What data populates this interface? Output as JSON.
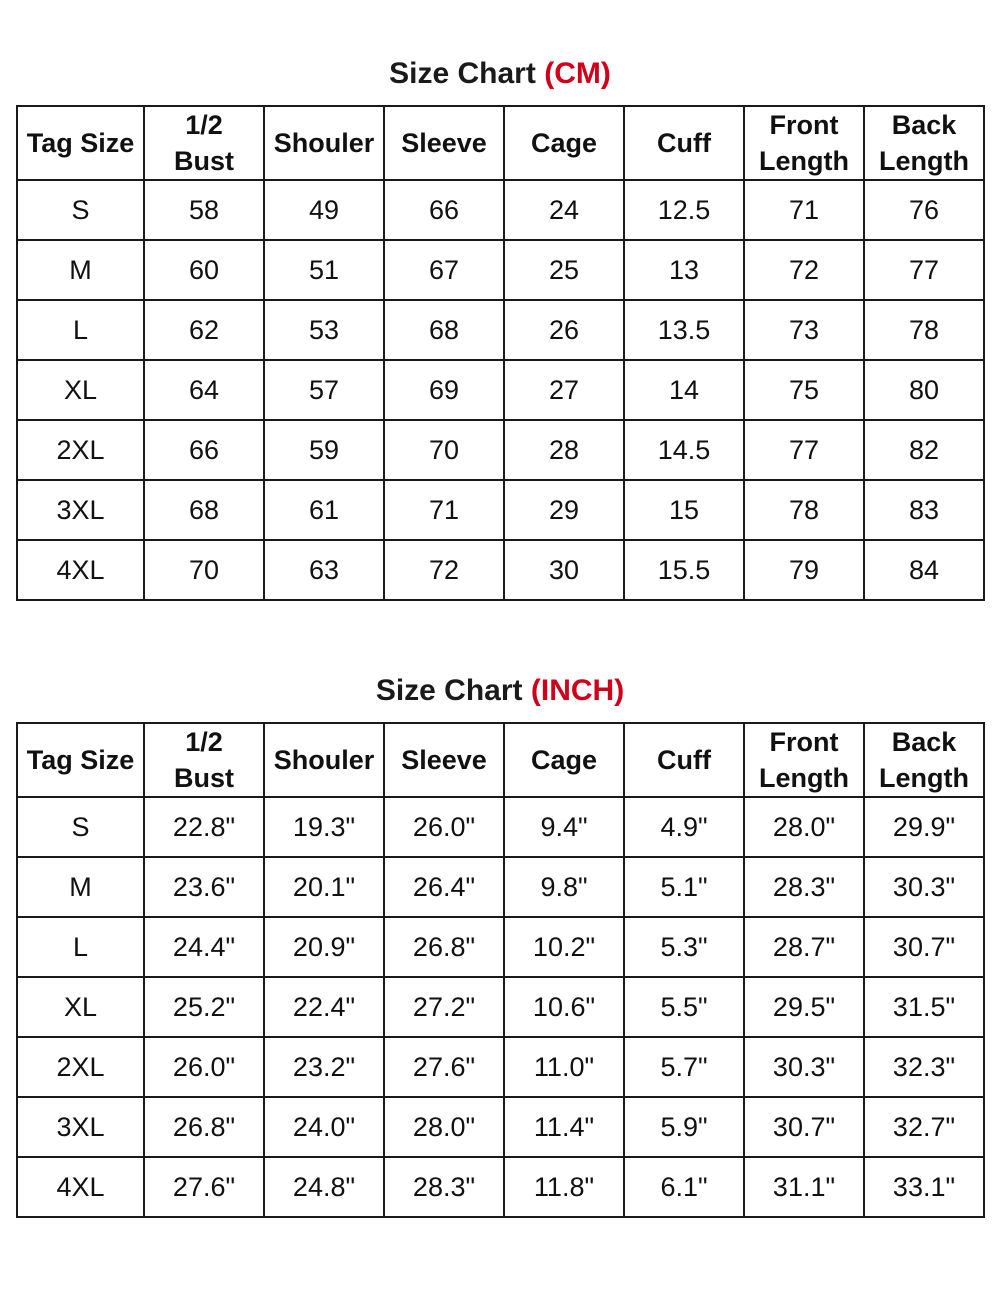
{
  "colors": {
    "unit_accent": "#d0021b",
    "text": "#1a1a1a",
    "border": "#1a1a1a",
    "background": "#ffffff"
  },
  "columns": [
    "Tag Size",
    "1/2 Bust",
    "Shouler",
    "Sleeve",
    "Cage",
    "Cuff",
    "Front Length",
    "Back Length"
  ],
  "header_lines": [
    [
      "Tag Size"
    ],
    [
      "1/2",
      "Bust"
    ],
    [
      "Shouler"
    ],
    [
      "Sleeve"
    ],
    [
      "Cage"
    ],
    [
      "Cuff"
    ],
    [
      "Front",
      "Length"
    ],
    [
      "Back",
      "Length"
    ]
  ],
  "cm": {
    "title": "Size Chart",
    "unit": "(CM)",
    "rows": [
      [
        "S",
        "58",
        "49",
        "66",
        "24",
        "12.5",
        "71",
        "76"
      ],
      [
        "M",
        "60",
        "51",
        "67",
        "25",
        "13",
        "72",
        "77"
      ],
      [
        "L",
        "62",
        "53",
        "68",
        "26",
        "13.5",
        "73",
        "78"
      ],
      [
        "XL",
        "64",
        "57",
        "69",
        "27",
        "14",
        "75",
        "80"
      ],
      [
        "2XL",
        "66",
        "59",
        "70",
        "28",
        "14.5",
        "77",
        "82"
      ],
      [
        "3XL",
        "68",
        "61",
        "71",
        "29",
        "15",
        "78",
        "83"
      ],
      [
        "4XL",
        "70",
        "63",
        "72",
        "30",
        "15.5",
        "79",
        "84"
      ]
    ]
  },
  "inch": {
    "title": "Size Chart",
    "unit": "(INCH)",
    "rows": [
      [
        "S",
        "22.8\"",
        "19.3\"",
        "26.0\"",
        "9.4\"",
        "4.9\"",
        "28.0\"",
        "29.9\""
      ],
      [
        "M",
        "23.6\"",
        "20.1\"",
        "26.4\"",
        "9.8\"",
        "5.1\"",
        "28.3\"",
        "30.3\""
      ],
      [
        "L",
        "24.4\"",
        "20.9\"",
        "26.8\"",
        "10.2\"",
        "5.3\"",
        "28.7\"",
        "30.7\""
      ],
      [
        "XL",
        "25.2\"",
        "22.4\"",
        "27.2\"",
        "10.6\"",
        "5.5\"",
        "29.5\"",
        "31.5\""
      ],
      [
        "2XL",
        "26.0\"",
        "23.2\"",
        "27.6\"",
        "11.0\"",
        "5.7\"",
        "30.3\"",
        "32.3\""
      ],
      [
        "3XL",
        "26.8\"",
        "24.0\"",
        "28.0\"",
        "11.4\"",
        "5.9\"",
        "30.7\"",
        "32.7\""
      ],
      [
        "4XL",
        "27.6\"",
        "24.8\"",
        "28.3\"",
        "11.8\"",
        "6.1\"",
        "31.1\"",
        "33.1\""
      ]
    ]
  }
}
